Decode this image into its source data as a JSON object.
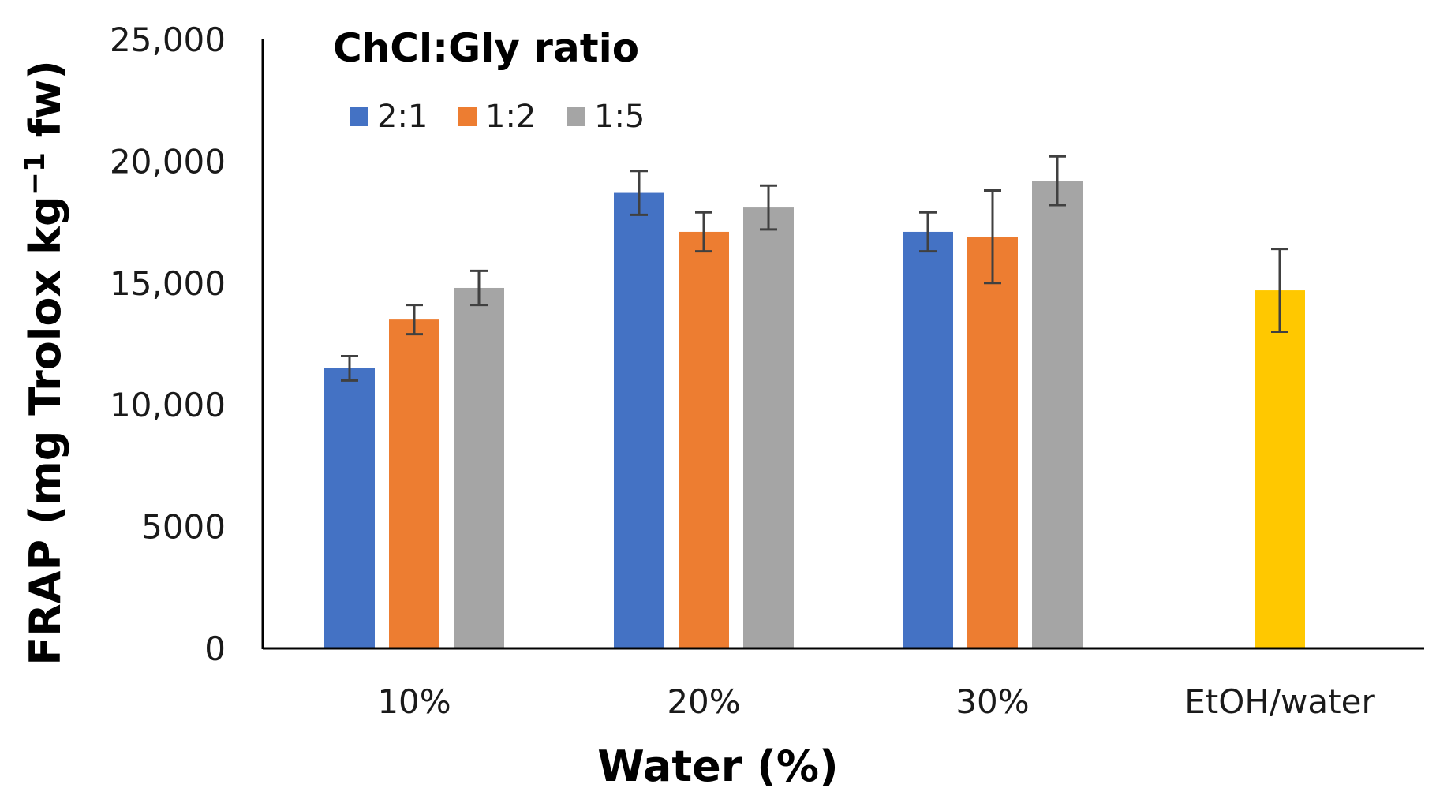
{
  "chart_data": {
    "type": "bar",
    "title": "",
    "xlabel": "Water (%)",
    "ylabel": "FRAP (mg Trolox kg",
    "ylabel_sup": "−1",
    "ylabel_tail": " fw)",
    "ylim": [
      0,
      25000
    ],
    "yticks": [
      {
        "value": 0,
        "label": "0"
      },
      {
        "value": 5000,
        "label": "5000"
      },
      {
        "value": 10000,
        "label": "10,000"
      },
      {
        "value": 15000,
        "label": "15,000"
      },
      {
        "value": 20000,
        "label": "20,000"
      },
      {
        "value": 25000,
        "label": "25,000"
      }
    ],
    "categories": [
      "10%",
      "20%",
      "30%",
      "EtOH/water"
    ],
    "legend_title": "ChCl:Gly ratio",
    "legend_position": "top-left",
    "series": [
      {
        "name": "2:1",
        "color": "#4472C4",
        "values": [
          11500,
          18700,
          17100,
          null
        ],
        "errors": [
          500,
          900,
          800,
          null
        ]
      },
      {
        "name": "1:2",
        "color": "#ED7D31",
        "values": [
          13500,
          17100,
          16900,
          null
        ],
        "errors": [
          600,
          800,
          1900,
          null
        ]
      },
      {
        "name": "1:5",
        "color": "#A5A5A5",
        "values": [
          14800,
          18100,
          19200,
          null
        ],
        "errors": [
          700,
          900,
          1000,
          null
        ]
      }
    ],
    "extra_bars": [
      {
        "category": "EtOH/water",
        "value": 14700,
        "error": 1700,
        "color": "#FFC800",
        "in_legend": false
      }
    ]
  }
}
